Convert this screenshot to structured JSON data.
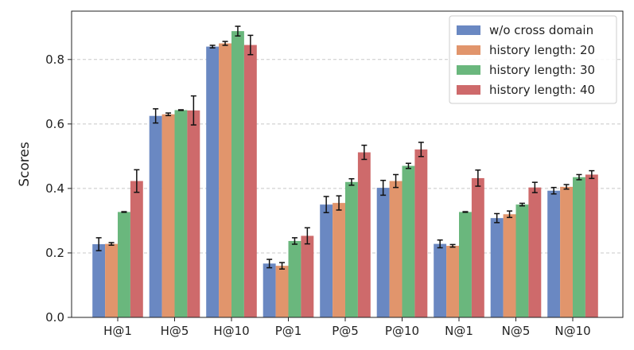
{
  "chart_data": {
    "type": "bar",
    "title": "",
    "xlabel": "",
    "ylabel": "Scores",
    "ylim": [
      0,
      0.95
    ],
    "yticks": [
      "0.0",
      "0.2",
      "0.4",
      "0.6",
      "0.8"
    ],
    "grid": true,
    "legend_position": "top-right",
    "categories": [
      "H@1",
      "H@5",
      "H@10",
      "P@1",
      "P@5",
      "P@10",
      "N@1",
      "N@5",
      "N@10"
    ],
    "series": [
      {
        "name": "w/o cross domain",
        "color": "#6a88c2",
        "values": [
          0.227,
          0.625,
          0.84,
          0.167,
          0.35,
          0.402,
          0.228,
          0.308,
          0.393
        ],
        "errors": [
          0.02,
          0.022,
          0.004,
          0.013,
          0.025,
          0.023,
          0.012,
          0.014,
          0.01
        ]
      },
      {
        "name": "history length: 20",
        "color": "#e1956c",
        "values": [
          0.228,
          0.63,
          0.85,
          0.16,
          0.355,
          0.423,
          0.222,
          0.32,
          0.405
        ],
        "errors": [
          0.004,
          0.004,
          0.006,
          0.01,
          0.022,
          0.02,
          0.004,
          0.01,
          0.007
        ]
      },
      {
        "name": "history length: 30",
        "color": "#6ab77d",
        "values": [
          0.327,
          0.643,
          0.888,
          0.237,
          0.42,
          0.47,
          0.327,
          0.35,
          0.435
        ],
        "errors": [
          0.001,
          0.001,
          0.015,
          0.01,
          0.01,
          0.008,
          0.001,
          0.004,
          0.008
        ]
      },
      {
        "name": "history length: 40",
        "color": "#ce6a6b",
        "values": [
          0.423,
          0.642,
          0.845,
          0.253,
          0.512,
          0.521,
          0.432,
          0.403,
          0.443
        ],
        "errors": [
          0.035,
          0.045,
          0.03,
          0.025,
          0.022,
          0.022,
          0.025,
          0.016,
          0.012
        ]
      }
    ]
  }
}
